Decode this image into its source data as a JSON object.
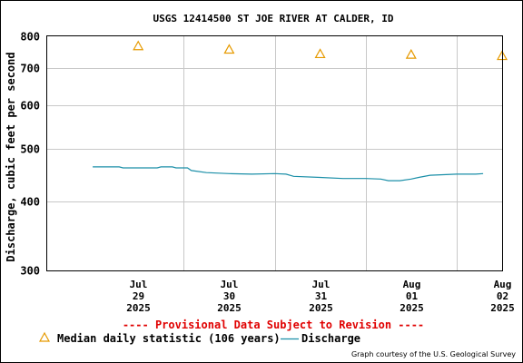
{
  "chart_data": {
    "type": "line",
    "title": "USGS 12414500 ST JOE RIVER AT CALDER, ID",
    "ylabel": "Discharge, cubic feet per second",
    "xlabel": "",
    "y_scale": "log",
    "ylim": [
      300,
      800
    ],
    "y_ticks": [
      {
        "value": 300,
        "label": "300"
      },
      {
        "value": 400,
        "label": "400"
      },
      {
        "value": 500,
        "label": "500"
      },
      {
        "value": 600,
        "label": "600"
      },
      {
        "value": 700,
        "label": "700"
      },
      {
        "value": 800,
        "label": "800"
      }
    ],
    "x_range": [
      "2025-07-28T12:00",
      "2025-08-02T12:00"
    ],
    "x_ticks": [
      {
        "value": "2025-07-29T12:00",
        "lines": [
          "Jul",
          "29",
          "2025"
        ]
      },
      {
        "value": "2025-07-30T12:00",
        "lines": [
          "Jul",
          "30",
          "2025"
        ]
      },
      {
        "value": "2025-07-31T12:00",
        "lines": [
          "Jul",
          "31",
          "2025"
        ]
      },
      {
        "value": "2025-08-01T12:00",
        "lines": [
          "Aug",
          "01",
          "2025"
        ]
      },
      {
        "value": "2025-08-02T12:00",
        "lines": [
          "Aug",
          "02",
          "2025"
        ]
      }
    ],
    "grid": true,
    "series": [
      {
        "name": "Median daily statistic (106 years)",
        "kind": "marker",
        "color": "#e69a00",
        "points": [
          {
            "x": "2025-07-29T12:00",
            "y": 768
          },
          {
            "x": "2025-07-30T12:00",
            "y": 757
          },
          {
            "x": "2025-07-31T12:00",
            "y": 743
          },
          {
            "x": "2025-08-01T12:00",
            "y": 741
          },
          {
            "x": "2025-08-02T12:00",
            "y": 737
          }
        ]
      },
      {
        "name": "Discharge",
        "kind": "line",
        "color": "#1b8fa8",
        "points": [
          {
            "x": "2025-07-29T00:00",
            "y": 463
          },
          {
            "x": "2025-07-29T07:00",
            "y": 463
          },
          {
            "x": "2025-07-29T08:00",
            "y": 461
          },
          {
            "x": "2025-07-29T17:00",
            "y": 461
          },
          {
            "x": "2025-07-29T18:00",
            "y": 463
          },
          {
            "x": "2025-07-29T21:00",
            "y": 463
          },
          {
            "x": "2025-07-29T22:00",
            "y": 461
          },
          {
            "x": "2025-07-30T01:00",
            "y": 461
          },
          {
            "x": "2025-07-30T02:00",
            "y": 456
          },
          {
            "x": "2025-07-30T06:00",
            "y": 452
          },
          {
            "x": "2025-07-30T12:00",
            "y": 450
          },
          {
            "x": "2025-07-30T18:00",
            "y": 449
          },
          {
            "x": "2025-07-31T00:00",
            "y": 450
          },
          {
            "x": "2025-07-31T03:00",
            "y": 449
          },
          {
            "x": "2025-07-31T05:00",
            "y": 445
          },
          {
            "x": "2025-07-31T12:00",
            "y": 443
          },
          {
            "x": "2025-07-31T18:00",
            "y": 441
          },
          {
            "x": "2025-08-01T00:00",
            "y": 441
          },
          {
            "x": "2025-08-01T04:00",
            "y": 440
          },
          {
            "x": "2025-08-01T06:00",
            "y": 437
          },
          {
            "x": "2025-08-01T09:00",
            "y": 437
          },
          {
            "x": "2025-08-01T12:00",
            "y": 440
          },
          {
            "x": "2025-08-01T14:00",
            "y": 443
          },
          {
            "x": "2025-08-01T17:00",
            "y": 447
          },
          {
            "x": "2025-08-02T00:00",
            "y": 449
          },
          {
            "x": "2025-08-02T02:00",
            "y": 449
          },
          {
            "x": "2025-08-02T05:00",
            "y": 449
          },
          {
            "x": "2025-08-02T07:00",
            "y": 450
          }
        ]
      }
    ],
    "legend": {
      "position": "bottom",
      "items": [
        {
          "label": "Median daily statistic (106 years)",
          "kind": "marker",
          "color": "#e69a00"
        },
        {
          "label": "Discharge",
          "kind": "line",
          "color": "#1b8fa8"
        }
      ]
    },
    "annotations": {
      "provisional": "---- Provisional Data Subject to Revision ----",
      "courtesy": "Graph courtesy of the U.S. Geological Survey"
    }
  }
}
